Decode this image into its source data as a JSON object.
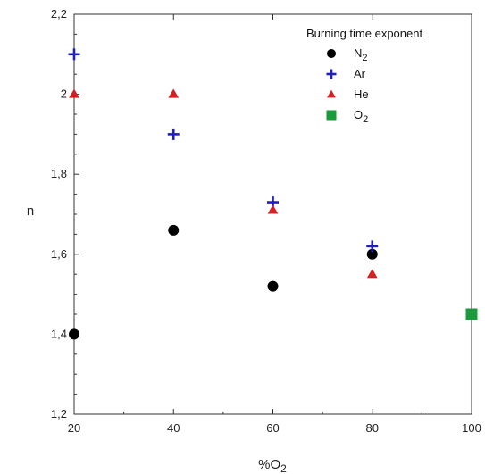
{
  "chart_data": {
    "type": "scatter",
    "title": "",
    "xlabel": "%O",
    "xlabel_sub": "2",
    "ylabel": "n",
    "xlim": [
      20,
      100
    ],
    "ylim": [
      1.2,
      2.2
    ],
    "x_ticks": [
      {
        "value": 20,
        "label": "20"
      },
      {
        "value": 40,
        "label": "40"
      },
      {
        "value": 60,
        "label": "60"
      },
      {
        "value": 80,
        "label": "80"
      },
      {
        "value": 100,
        "label": "100"
      }
    ],
    "y_ticks": [
      {
        "value": 1.2,
        "label": "1,2"
      },
      {
        "value": 1.4,
        "label": "1,4"
      },
      {
        "value": 1.6,
        "label": "1,6"
      },
      {
        "value": 1.8,
        "label": "1,8"
      },
      {
        "value": 2.0,
        "label": "2"
      },
      {
        "value": 2.2,
        "label": "2,2"
      }
    ],
    "grid": false,
    "legend": {
      "title": "Burning time exponent",
      "placement": "top-right"
    },
    "series": [
      {
        "name": "N",
        "name_sub": "2",
        "marker": "circle",
        "color": "#000000",
        "points": [
          [
            20,
            1.4
          ],
          [
            40,
            1.66
          ],
          [
            60,
            1.52
          ],
          [
            80,
            1.6
          ]
        ]
      },
      {
        "name": "Ar",
        "name_sub": "",
        "marker": "plus",
        "color": "#1f1fbf",
        "points": [
          [
            20,
            2.1
          ],
          [
            40,
            1.9
          ],
          [
            60,
            1.73
          ],
          [
            80,
            1.62
          ]
        ]
      },
      {
        "name": "He",
        "name_sub": "",
        "marker": "triangle",
        "color": "#d42020",
        "points": [
          [
            20,
            2.0
          ],
          [
            40,
            2.0
          ],
          [
            60,
            1.71
          ],
          [
            80,
            1.55
          ]
        ]
      },
      {
        "name": "O",
        "name_sub": "2",
        "marker": "square",
        "color": "#1a9a3a",
        "points": [
          [
            100,
            1.45
          ]
        ]
      }
    ]
  }
}
